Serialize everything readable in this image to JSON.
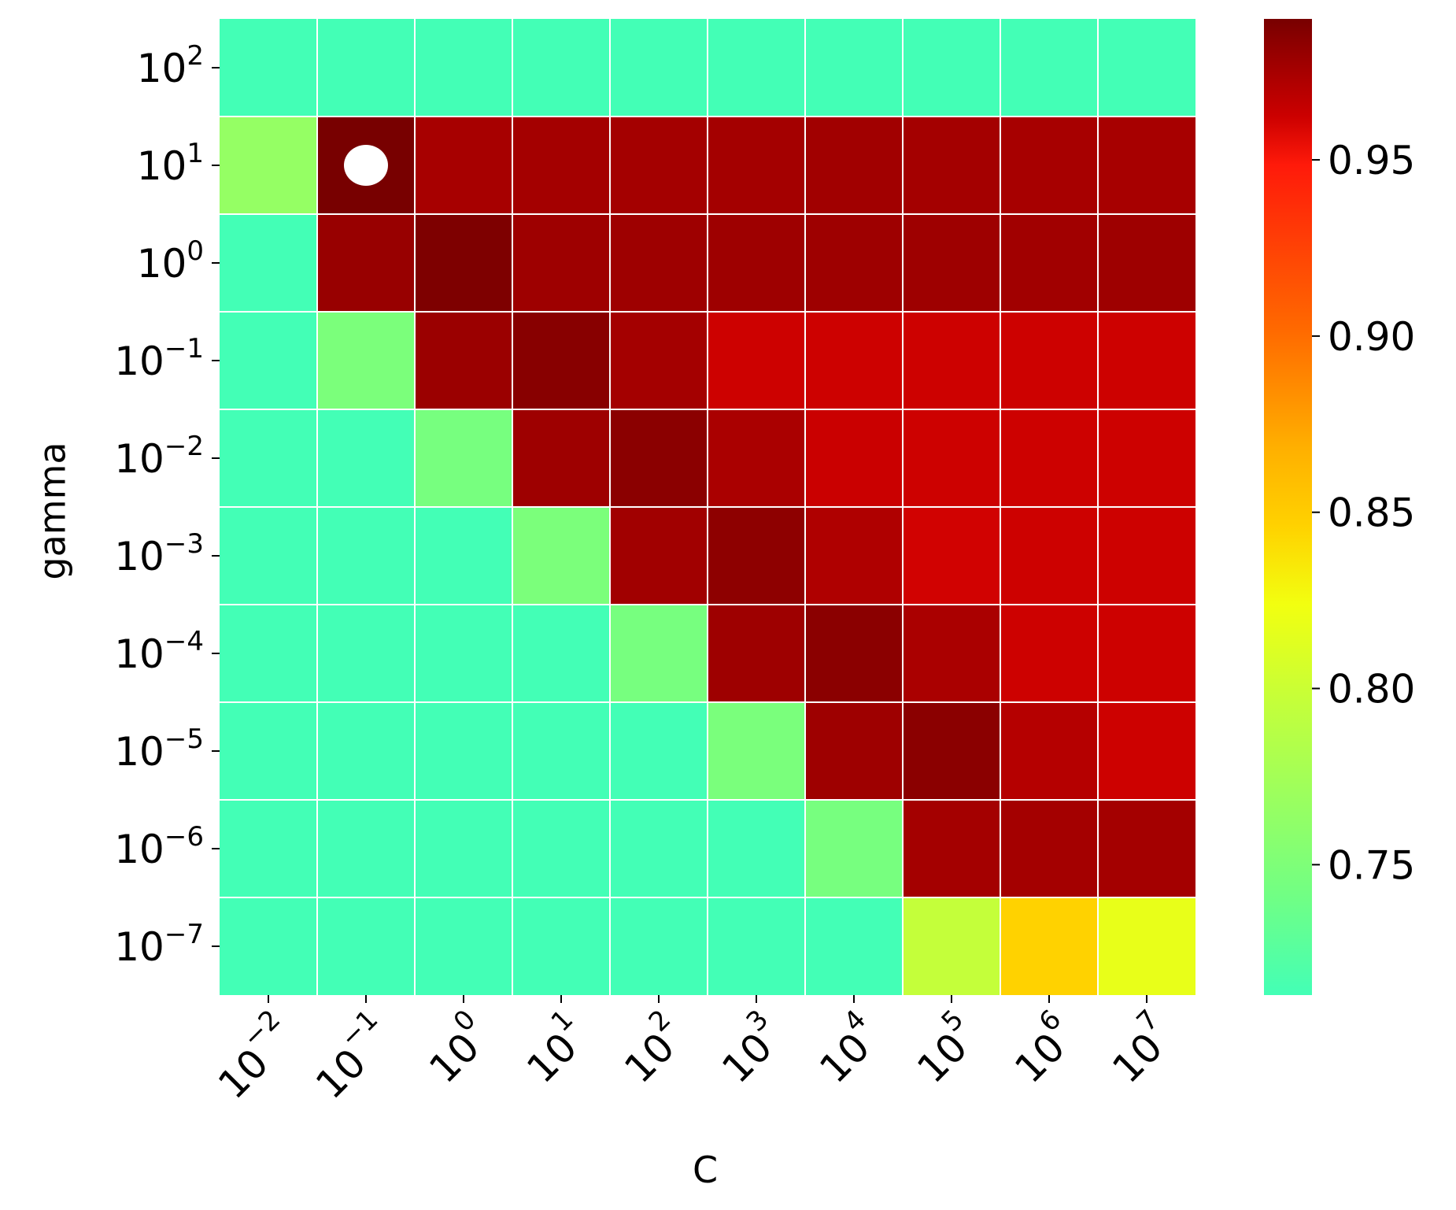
{
  "chart_data": {
    "type": "heatmap",
    "title": "",
    "xlabel": "C",
    "ylabel": "gamma",
    "x_ticks": [
      {
        "base": "10",
        "exp": "−2"
      },
      {
        "base": "10",
        "exp": "−1"
      },
      {
        "base": "10",
        "exp": "0"
      },
      {
        "base": "10",
        "exp": "1"
      },
      {
        "base": "10",
        "exp": "2"
      },
      {
        "base": "10",
        "exp": "3"
      },
      {
        "base": "10",
        "exp": "4"
      },
      {
        "base": "10",
        "exp": "5"
      },
      {
        "base": "10",
        "exp": "6"
      },
      {
        "base": "10",
        "exp": "7"
      }
    ],
    "y_ticks": [
      {
        "base": "10",
        "exp": "2"
      },
      {
        "base": "10",
        "exp": "1"
      },
      {
        "base": "10",
        "exp": "0"
      },
      {
        "base": "10",
        "exp": "−1"
      },
      {
        "base": "10",
        "exp": "−2"
      },
      {
        "base": "10",
        "exp": "−3"
      },
      {
        "base": "10",
        "exp": "−4"
      },
      {
        "base": "10",
        "exp": "−5"
      },
      {
        "base": "10",
        "exp": "−6"
      },
      {
        "base": "10",
        "exp": "−7"
      }
    ],
    "values": [
      [
        0.713,
        0.713,
        0.713,
        0.713,
        0.713,
        0.713,
        0.713,
        0.713,
        0.713,
        0.713
      ],
      [
        0.765,
        0.99,
        0.975,
        0.976,
        0.976,
        0.976,
        0.977,
        0.976,
        0.975,
        0.975
      ],
      [
        0.713,
        0.98,
        0.988,
        0.978,
        0.978,
        0.978,
        0.978,
        0.978,
        0.977,
        0.978
      ],
      [
        0.713,
        0.748,
        0.979,
        0.985,
        0.976,
        0.962,
        0.962,
        0.962,
        0.962,
        0.962
      ],
      [
        0.713,
        0.713,
        0.745,
        0.978,
        0.984,
        0.974,
        0.963,
        0.962,
        0.962,
        0.962
      ],
      [
        0.713,
        0.713,
        0.713,
        0.748,
        0.977,
        0.983,
        0.972,
        0.961,
        0.962,
        0.962
      ],
      [
        0.713,
        0.713,
        0.713,
        0.713,
        0.745,
        0.978,
        0.984,
        0.974,
        0.962,
        0.962
      ],
      [
        0.713,
        0.713,
        0.713,
        0.713,
        0.713,
        0.747,
        0.978,
        0.984,
        0.97,
        0.962
      ],
      [
        0.713,
        0.713,
        0.713,
        0.713,
        0.713,
        0.713,
        0.745,
        0.976,
        0.976,
        0.976
      ],
      [
        0.713,
        0.713,
        0.713,
        0.713,
        0.713,
        0.713,
        0.713,
        0.796,
        0.846,
        0.818
      ]
    ],
    "best_marker": {
      "row": 1,
      "col": 1,
      "color": "#ffffff"
    },
    "colorbar": {
      "min": 0.713,
      "max": 0.99,
      "ticks": [
        "0.75",
        "0.80",
        "0.85",
        "0.90",
        "0.95"
      ],
      "tick_values": [
        0.75,
        0.8,
        0.85,
        0.9,
        0.95
      ]
    },
    "grid_line_color": "#ffffff",
    "colormap_stops": [
      {
        "t": 0.0,
        "color": "#43ffb6"
      },
      {
        "t": 0.1,
        "color": "#70ff85"
      },
      {
        "t": 0.3,
        "color": "#c4ff3a"
      },
      {
        "t": 0.4,
        "color": "#f2ff10"
      },
      {
        "t": 0.48,
        "color": "#ffd200"
      },
      {
        "t": 0.56,
        "color": "#ffb000"
      },
      {
        "t": 0.68,
        "color": "#ff6a00"
      },
      {
        "t": 0.85,
        "color": "#ff1a0a"
      },
      {
        "t": 0.9,
        "color": "#cc0000"
      },
      {
        "t": 0.96,
        "color": "#9b0000"
      },
      {
        "t": 1.0,
        "color": "#780000"
      }
    ]
  }
}
